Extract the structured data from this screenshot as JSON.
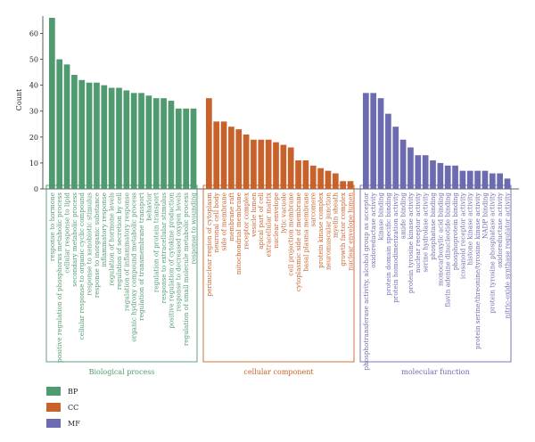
{
  "chart_data": {
    "type": "bar",
    "ylabel": "Count",
    "ylim": [
      0,
      66
    ],
    "yticks": [
      0,
      10,
      20,
      30,
      40,
      50,
      60
    ],
    "groups": [
      {
        "key": "BP",
        "name": "Biological process",
        "color": "#4f9a6f",
        "categories": [
          "response to hormone",
          "positive regulation of phosphorus metabolic process",
          "cellular response to lipid",
          "secondary metabolic process",
          "cellular response to organic cyclic compound",
          "response to xenobiotic stimulus",
          "response to inorganic substance",
          "inflammatory response",
          "regulation of hormone levels",
          "regulation of secretion by cell",
          "regulation of inflammatory response",
          "organic hydroxy compound metabolic process",
          "regulation of transmembrane transport",
          "behavior",
          "regulation of protein transport",
          "response to extracellular stimulus",
          "positive regulation of cytokine production",
          "response to decreased oxygen levels",
          "regulation of small molecule metabolic process",
          "response to wounding"
        ],
        "values": [
          66,
          50,
          48,
          44,
          42,
          41,
          41,
          40,
          39,
          39,
          38,
          37,
          37,
          36,
          35,
          35,
          34,
          31,
          31,
          31
        ]
      },
      {
        "key": "CC",
        "name": "cellular component",
        "color": "#c8612a",
        "categories": [
          "perinuclear region of cytoplasm",
          "neuronal cell body",
          "side of membrane",
          "membrane raft",
          "mitochondrial membrane",
          "receptor complex",
          "vesicle lumen",
          "apical part of cell",
          "extracellular matrix",
          "nuclear envelope",
          "lytic vacuole",
          "cell projection membrane",
          "cytoplasmic side of membrane",
          "basal plasma membrane",
          "sarcomere",
          "protein kinase complex",
          "neuromuscular junction",
          "myelin sheath",
          "growth factor complex",
          "nuclear envelope lumen"
        ],
        "values": [
          35,
          26,
          26,
          24,
          23,
          21,
          19,
          19,
          19,
          18,
          17,
          16,
          11,
          11,
          9,
          8,
          7,
          6,
          3,
          3
        ]
      },
      {
        "key": "MF",
        "name": "molecular function",
        "color": "#6d6bb0",
        "categories": [
          "phosphotransferase activity, alcohol group as acceptor",
          "oxidoreductase activity",
          "kinase binding",
          "protein domain specific binding",
          "protein homodimerization activity",
          "amide binding",
          "protein tyrosine kinase activity",
          "nuclear receptor activity",
          "serine hydrolase activity",
          "phosphatase binding",
          "monocarboxylic acid binding",
          "flavin adenine dinucleotide binding",
          "phosphoprotein binding",
          "icosanoid receptor activity",
          "histone kinase activity",
          "protein serine/threonine/tyrosine kinase activity",
          "NADP binding",
          "protein tyrosine phosphatase activity",
          "oxidoreductase activity",
          "nitric-oxide synthase regulator activity"
        ],
        "values": [
          37,
          37,
          35,
          29,
          24,
          19,
          16,
          13,
          13,
          11,
          10,
          9,
          9,
          7,
          7,
          7,
          7,
          6,
          6,
          4
        ]
      }
    ],
    "legend": [
      {
        "label": "BP",
        "color": "#4f9a6f"
      },
      {
        "label": "CC",
        "color": "#c8612a"
      },
      {
        "label": "MF",
        "color": "#6d6bb0"
      }
    ],
    "legend_position": "bottom-left"
  }
}
